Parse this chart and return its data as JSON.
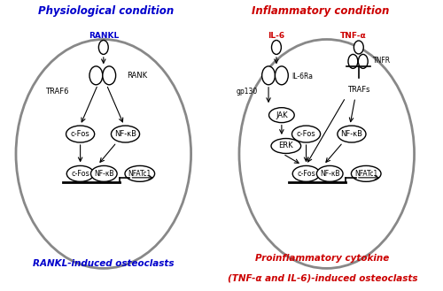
{
  "fig_width": 5.0,
  "fig_height": 3.29,
  "dpi": 100,
  "bg_color": "#ffffff",
  "left_title": "Physiological condition",
  "right_title": "Inflammatory condition",
  "left_title_color": "#0000cc",
  "right_title_color": "#cc0000",
  "left_bottom_label": "RANKL-induced osteoclasts",
  "right_bottom_label1": "Proinflammatory cytokine",
  "right_bottom_label2": "(TNF-α and IL-6)-induced osteoclasts",
  "left_bottom_color": "#0000cc",
  "right_bottom_color": "#cc0000",
  "cell_color": "#888888",
  "cell_lw": 2.0
}
